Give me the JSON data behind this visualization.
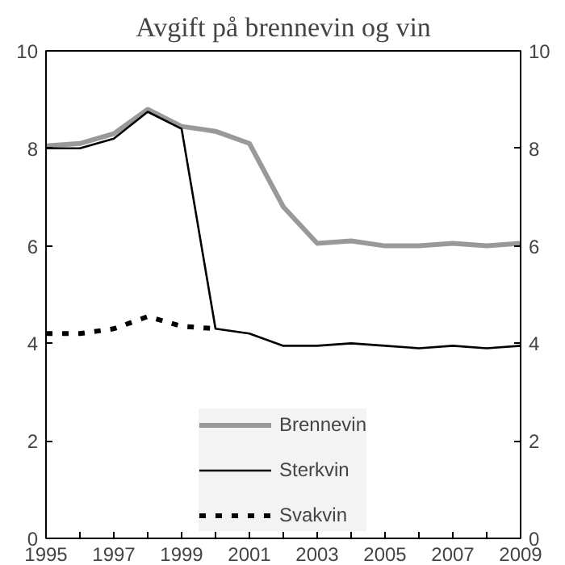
{
  "chart_data": {
    "type": "line",
    "title": "Avgift på brennevin og vin",
    "x": [
      1995,
      1996,
      1997,
      1998,
      1999,
      2000,
      2001,
      2002,
      2003,
      2004,
      2005,
      2006,
      2007,
      2008,
      2009
    ],
    "series": [
      {
        "name": "Brennevin",
        "color": "#999999",
        "line_style": "solid",
        "values": [
          8.05,
          8.1,
          8.3,
          8.8,
          8.45,
          8.35,
          8.1,
          6.8,
          6.05,
          6.1,
          6.0,
          6.0,
          6.05,
          6.0,
          6.05
        ]
      },
      {
        "name": "Sterkvin",
        "color": "#000000",
        "line_style": "solid",
        "values": [
          8.0,
          8.0,
          8.2,
          8.75,
          8.4,
          4.3,
          4.2,
          3.95,
          3.95,
          4.0,
          3.95,
          3.9,
          3.95,
          3.9,
          3.95
        ]
      },
      {
        "name": "Svakvin",
        "color": "#000000",
        "line_style": "dashed",
        "values": [
          4.2,
          4.2,
          4.3,
          4.55,
          4.35,
          4.3,
          null,
          null,
          null,
          null,
          null,
          null,
          null,
          null,
          null
        ]
      }
    ],
    "xlim": [
      1995,
      2009
    ],
    "xticks": [
      1995,
      {
        "value": 1996,
        "label": null
      },
      1997,
      {
        "value": 1998,
        "label": null
      },
      1999,
      {
        "value": 2000,
        "label": null
      },
      2001,
      {
        "value": 2002,
        "label": null
      },
      2003,
      {
        "value": 2004,
        "label": null
      },
      2005,
      {
        "value": 2006,
        "label": null
      },
      2007,
      {
        "value": 2008,
        "label": null
      },
      2009
    ],
    "ylim": [
      0,
      10
    ],
    "yticks": [
      0,
      2,
      4,
      6,
      8,
      10
    ],
    "y2lim": [
      0,
      10
    ],
    "y2ticks": [
      0,
      2,
      4,
      6,
      8,
      10
    ],
    "grid": false,
    "legend": "bottom",
    "marker": "none"
  }
}
